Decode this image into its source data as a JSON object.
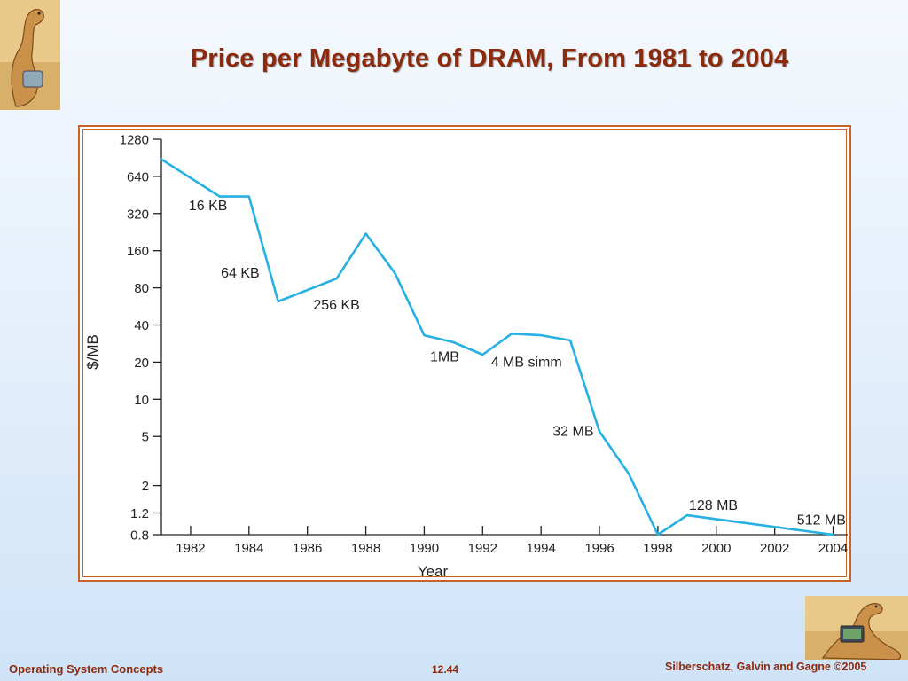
{
  "slide": {
    "title": "Price per Megabyte of DRAM, From 1981 to 2004"
  },
  "footer": {
    "left": "Operating System Concepts",
    "center": "12.44",
    "right": "Silberschatz, Galvin and Gagne ©2005"
  },
  "chart_data": {
    "type": "line",
    "title": "",
    "xlabel": "Year",
    "ylabel": "$/MB",
    "y_scale": "log",
    "y_ticks": [
      0.8,
      1.2,
      2,
      5,
      10,
      20,
      40,
      80,
      160,
      320,
      640,
      1280
    ],
    "y_tick_labels": [
      "0.8",
      "1.2",
      "2",
      "5",
      "10",
      "20",
      "40",
      "80",
      "160",
      "320",
      "640",
      "1280"
    ],
    "x_ticks": [
      1982,
      1984,
      1986,
      1988,
      1990,
      1992,
      1994,
      1996,
      1998,
      2000,
      2002,
      2004
    ],
    "x_tick_labels": [
      "1982",
      "1984",
      "1986",
      "1988",
      "1990",
      "1992",
      "1994",
      "1996",
      "1998",
      "2000",
      "2002",
      "2004"
    ],
    "xlim": [
      1981,
      2004.5
    ],
    "ylim": [
      0.8,
      1280
    ],
    "line_color": "#27b0e4",
    "series": [
      {
        "x": [
          1981,
          1983,
          1984,
          1985,
          1987,
          1988,
          1989,
          1990,
          1991,
          1992,
          1993,
          1994,
          1995,
          1996,
          1997,
          1998,
          1999,
          2004
        ],
        "y": [
          880,
          440,
          440,
          62,
          95,
          220,
          105,
          33,
          29,
          23,
          34,
          33,
          30,
          5.5,
          2.5,
          0.8,
          1.15,
          0.8
        ]
      }
    ],
    "annotations": [
      {
        "text": "16 KB",
        "x": 1982.6,
        "y": 370
      },
      {
        "text": "64 KB",
        "x": 1983.7,
        "y": 105
      },
      {
        "text": "256 KB",
        "x": 1987,
        "y": 58
      },
      {
        "text": "1MB",
        "x": 1990.7,
        "y": 22
      },
      {
        "text": "4 MB simm",
        "x": 1993.5,
        "y": 20
      },
      {
        "text": "32 MB",
        "x": 1995.1,
        "y": 5.5
      },
      {
        "text": "128 MB",
        "x": 1999.9,
        "y": 1.38
      },
      {
        "text": "512 MB",
        "x": 2003.6,
        "y": 1.05
      }
    ]
  }
}
